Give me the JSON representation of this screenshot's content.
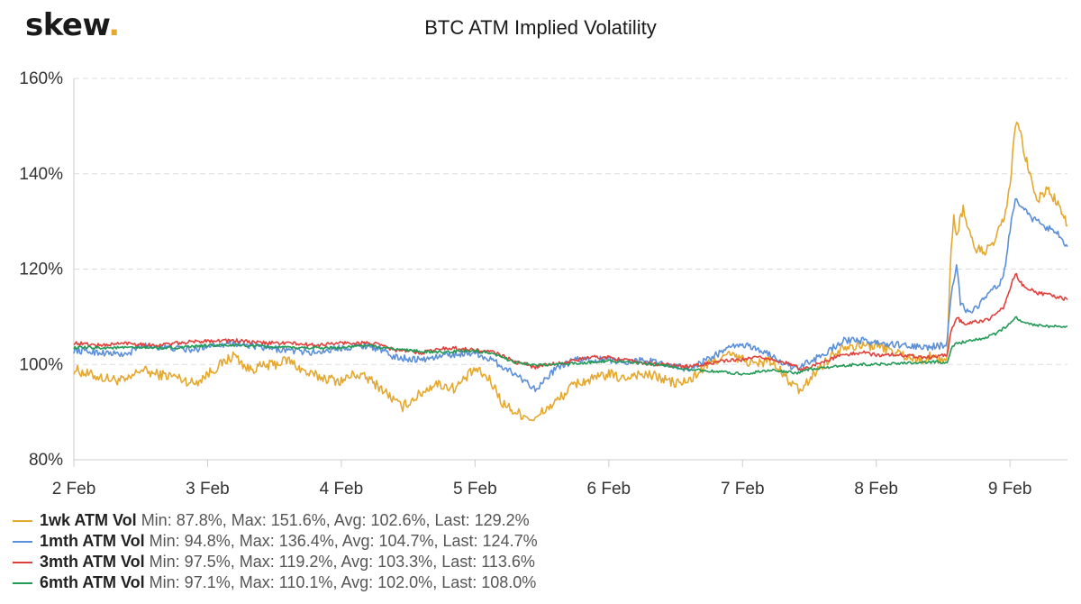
{
  "header": {
    "logo_text": "skew",
    "logo_dot": ".",
    "title": "BTC ATM Implied Volatility"
  },
  "colors": {
    "1wk": "#e5a82e",
    "1mth": "#5b8fd9",
    "3mth": "#e0403b",
    "6mth": "#229a55",
    "grid": "#dddddd",
    "axis": "#cccccc"
  },
  "chart_data": {
    "type": "line",
    "title": "BTC ATM Implied Volatility",
    "xlabel": "",
    "ylabel": "",
    "x_ticks": [
      "2 Feb",
      "3 Feb",
      "4 Feb",
      "5 Feb",
      "6 Feb",
      "7 Feb",
      "8 Feb",
      "9 Feb"
    ],
    "y_ticks": [
      "80%",
      "100%",
      "120%",
      "140%",
      "160%"
    ],
    "ylim": [
      80,
      160
    ],
    "xlim_days": [
      2,
      9.43
    ],
    "grid": "horizontal dashed",
    "legend_position": "bottom",
    "series": [
      {
        "name": "1wk ATM Vol",
        "stats": "Min: 87.8%, Max: 151.6%, Avg: 102.6%, Last: 129.2%",
        "points": [
          [
            2.0,
            99
          ],
          [
            2.1,
            98
          ],
          [
            2.25,
            97
          ],
          [
            2.4,
            96.5
          ],
          [
            2.5,
            99
          ],
          [
            2.6,
            98
          ],
          [
            2.75,
            97.5
          ],
          [
            2.9,
            96
          ],
          [
            3.0,
            98
          ],
          [
            3.1,
            100
          ],
          [
            3.2,
            102
          ],
          [
            3.3,
            99
          ],
          [
            3.5,
            100
          ],
          [
            3.6,
            101
          ],
          [
            3.75,
            98
          ],
          [
            3.9,
            97
          ],
          [
            4.0,
            96.5
          ],
          [
            4.1,
            98
          ],
          [
            4.2,
            97
          ],
          [
            4.3,
            95
          ],
          [
            4.45,
            91
          ],
          [
            4.55,
            93
          ],
          [
            4.7,
            96
          ],
          [
            4.85,
            95
          ],
          [
            5.0,
            99
          ],
          [
            5.1,
            97
          ],
          [
            5.15,
            95
          ],
          [
            5.2,
            92
          ],
          [
            5.3,
            90
          ],
          [
            5.4,
            89
          ],
          [
            5.45,
            88.2
          ],
          [
            5.5,
            90
          ],
          [
            5.6,
            92
          ],
          [
            5.75,
            96
          ],
          [
            5.9,
            97
          ],
          [
            6.0,
            98
          ],
          [
            6.1,
            97
          ],
          [
            6.2,
            98
          ],
          [
            6.35,
            97.5
          ],
          [
            6.5,
            96
          ],
          [
            6.6,
            96.5
          ],
          [
            6.7,
            99
          ],
          [
            6.8,
            101
          ],
          [
            6.9,
            102
          ],
          [
            7.0,
            101
          ],
          [
            7.1,
            100
          ],
          [
            7.2,
            101
          ],
          [
            7.3,
            98
          ],
          [
            7.4,
            95
          ],
          [
            7.45,
            94.5
          ],
          [
            7.5,
            97
          ],
          [
            7.6,
            100
          ],
          [
            7.75,
            104
          ],
          [
            7.9,
            104
          ],
          [
            8.0,
            104
          ],
          [
            8.1,
            103
          ],
          [
            8.2,
            102
          ],
          [
            8.3,
            101
          ],
          [
            8.4,
            101.5
          ],
          [
            8.5,
            101
          ],
          [
            8.53,
            101.5
          ],
          [
            8.56,
            125
          ],
          [
            8.58,
            131
          ],
          [
            8.6,
            127
          ],
          [
            8.65,
            133
          ],
          [
            8.7,
            127
          ],
          [
            8.75,
            124
          ],
          [
            8.85,
            124
          ],
          [
            8.95,
            130
          ],
          [
            9.0,
            137
          ],
          [
            9.03,
            148
          ],
          [
            9.06,
            151
          ],
          [
            9.1,
            145
          ],
          [
            9.15,
            140
          ],
          [
            9.2,
            134
          ],
          [
            9.28,
            137
          ],
          [
            9.35,
            134
          ],
          [
            9.43,
            129.2
          ]
        ]
      },
      {
        "name": "1mth ATM Vol",
        "stats": "Min: 94.8%, Max: 136.4%, Avg: 104.7%, Last: 124.7%",
        "points": [
          [
            2.0,
            103
          ],
          [
            2.2,
            102.5
          ],
          [
            2.4,
            102
          ],
          [
            2.5,
            104
          ],
          [
            2.7,
            103.5
          ],
          [
            2.9,
            103
          ],
          [
            3.0,
            104
          ],
          [
            3.2,
            104.5
          ],
          [
            3.4,
            103.5
          ],
          [
            3.6,
            103
          ],
          [
            3.8,
            102.5
          ],
          [
            4.0,
            103.5
          ],
          [
            4.2,
            104
          ],
          [
            4.3,
            103
          ],
          [
            4.4,
            101.5
          ],
          [
            4.6,
            101
          ],
          [
            4.8,
            102
          ],
          [
            5.0,
            102.5
          ],
          [
            5.15,
            100.5
          ],
          [
            5.3,
            98
          ],
          [
            5.4,
            96
          ],
          [
            5.45,
            95
          ],
          [
            5.5,
            96
          ],
          [
            5.6,
            99
          ],
          [
            5.75,
            101
          ],
          [
            5.9,
            101
          ],
          [
            6.0,
            101
          ],
          [
            6.1,
            100.5
          ],
          [
            6.25,
            101
          ],
          [
            6.45,
            100
          ],
          [
            6.6,
            99
          ],
          [
            6.7,
            100.5
          ],
          [
            6.8,
            102
          ],
          [
            6.95,
            104
          ],
          [
            7.0,
            104
          ],
          [
            7.1,
            103.5
          ],
          [
            7.2,
            102
          ],
          [
            7.3,
            100.5
          ],
          [
            7.4,
            99
          ],
          [
            7.5,
            100.5
          ],
          [
            7.6,
            102
          ],
          [
            7.75,
            105
          ],
          [
            7.9,
            105
          ],
          [
            8.0,
            104.5
          ],
          [
            8.2,
            104
          ],
          [
            8.35,
            103.5
          ],
          [
            8.5,
            104
          ],
          [
            8.53,
            104.5
          ],
          [
            8.56,
            115
          ],
          [
            8.6,
            121
          ],
          [
            8.63,
            113
          ],
          [
            8.68,
            111
          ],
          [
            8.75,
            112
          ],
          [
            8.85,
            115
          ],
          [
            8.95,
            118
          ],
          [
            9.0,
            128
          ],
          [
            9.04,
            135
          ],
          [
            9.08,
            133
          ],
          [
            9.15,
            131
          ],
          [
            9.25,
            129
          ],
          [
            9.35,
            128
          ],
          [
            9.43,
            124.7
          ]
        ]
      },
      {
        "name": "3mth ATM Vol",
        "stats": "Min: 97.5%, Max: 119.2%, Avg: 103.3%, Last: 113.6%",
        "points": [
          [
            2.0,
            104.5
          ],
          [
            2.2,
            104
          ],
          [
            2.4,
            104.5
          ],
          [
            2.6,
            104
          ],
          [
            2.8,
            104.5
          ],
          [
            3.0,
            105
          ],
          [
            3.2,
            105
          ],
          [
            3.4,
            104.5
          ],
          [
            3.6,
            104.5
          ],
          [
            3.8,
            104
          ],
          [
            4.0,
            104.5
          ],
          [
            4.2,
            104.5
          ],
          [
            4.3,
            104
          ],
          [
            4.4,
            103
          ],
          [
            4.6,
            102.5
          ],
          [
            4.8,
            103.5
          ],
          [
            5.0,
            103
          ],
          [
            5.15,
            102.5
          ],
          [
            5.3,
            100.5
          ],
          [
            5.45,
            99.5
          ],
          [
            5.55,
            100
          ],
          [
            5.7,
            100.5
          ],
          [
            5.85,
            101.5
          ],
          [
            6.0,
            101.5
          ],
          [
            6.2,
            100.5
          ],
          [
            6.4,
            100
          ],
          [
            6.6,
            99.5
          ],
          [
            6.8,
            100.5
          ],
          [
            7.0,
            101
          ],
          [
            7.15,
            101.5
          ],
          [
            7.3,
            100.5
          ],
          [
            7.45,
            99
          ],
          [
            7.6,
            100.5
          ],
          [
            7.75,
            102
          ],
          [
            7.9,
            102.5
          ],
          [
            8.0,
            102
          ],
          [
            8.2,
            102
          ],
          [
            8.4,
            101.5
          ],
          [
            8.53,
            102
          ],
          [
            8.56,
            107
          ],
          [
            8.6,
            110
          ],
          [
            8.65,
            108.5
          ],
          [
            8.75,
            109
          ],
          [
            8.85,
            109.5
          ],
          [
            8.95,
            112
          ],
          [
            9.0,
            116
          ],
          [
            9.04,
            119
          ],
          [
            9.1,
            116.5
          ],
          [
            9.2,
            115
          ],
          [
            9.3,
            114.5
          ],
          [
            9.43,
            113.6
          ]
        ]
      },
      {
        "name": "6mth ATM Vol",
        "stats": "Min: 97.1%, Max: 110.1%, Avg: 102.0%, Last: 108.0%",
        "points": [
          [
            2.0,
            103.5
          ],
          [
            2.2,
            103.5
          ],
          [
            2.4,
            103.5
          ],
          [
            2.6,
            103.5
          ],
          [
            2.8,
            103.5
          ],
          [
            3.0,
            104
          ],
          [
            3.2,
            104
          ],
          [
            3.4,
            103.8
          ],
          [
            3.6,
            103.5
          ],
          [
            3.8,
            103.5
          ],
          [
            4.0,
            103.5
          ],
          [
            4.2,
            104
          ],
          [
            4.3,
            103.5
          ],
          [
            4.5,
            103
          ],
          [
            4.7,
            102.5
          ],
          [
            4.9,
            102.8
          ],
          [
            5.0,
            102.8
          ],
          [
            5.15,
            102
          ],
          [
            5.3,
            100.5
          ],
          [
            5.45,
            99.8
          ],
          [
            5.6,
            100
          ],
          [
            5.8,
            100.3
          ],
          [
            6.0,
            100.8
          ],
          [
            6.2,
            100.3
          ],
          [
            6.4,
            99.8
          ],
          [
            6.6,
            99
          ],
          [
            6.8,
            98.5
          ],
          [
            7.0,
            98
          ],
          [
            7.2,
            98.8
          ],
          [
            7.4,
            98.2
          ],
          [
            7.5,
            99
          ],
          [
            7.7,
            99.5
          ],
          [
            7.85,
            100
          ],
          [
            8.0,
            100
          ],
          [
            8.2,
            100.3
          ],
          [
            8.4,
            100.5
          ],
          [
            8.53,
            100.5
          ],
          [
            8.57,
            104
          ],
          [
            8.62,
            104.5
          ],
          [
            8.7,
            105
          ],
          [
            8.8,
            105.5
          ],
          [
            8.9,
            106.5
          ],
          [
            9.0,
            108.5
          ],
          [
            9.04,
            110
          ],
          [
            9.1,
            108.8
          ],
          [
            9.2,
            108.3
          ],
          [
            9.3,
            108
          ],
          [
            9.43,
            108
          ]
        ]
      }
    ]
  }
}
